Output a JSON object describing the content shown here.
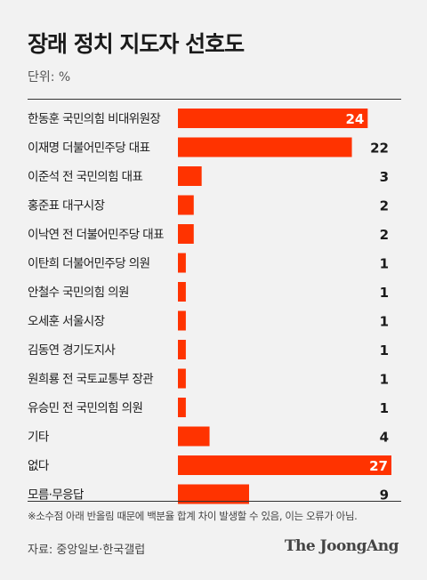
{
  "header": {
    "title": "장래 정치 지도자 선호도",
    "unit": "단위: %"
  },
  "footer": {
    "footnote": "※소수점 아래 반올림 때문에 백분율 합계 차이 발생할 수 있음, 이는 오류가 아님.",
    "source": "자료: 중앙일보·한국갤럽",
    "brand": "The JoongAng"
  },
  "colors": {
    "bar": "#ff3300",
    "label_inside": "#ffffff",
    "label_outside": "#1a1a1a"
  },
  "chart_data": {
    "type": "bar",
    "orientation": "horizontal",
    "title": "장래 정치 지도자 선호도",
    "unit": "%",
    "categories": [
      "한동훈 국민의힘 비대위원장",
      "이재명 더불어민주당 대표",
      "이준석 전 국민의힘 대표",
      "홍준표 대구시장",
      "이낙연 전 더불어민주당 대표",
      "이탄희 더불어민주당 의원",
      "안철수 국민의힘 의원",
      "오세훈 서울시장",
      "김동연 경기도지사",
      "원희룡 전 국토교통부 장관",
      "유승민 전 국민의힘 의원",
      "기타",
      "없다",
      "모름·무응답"
    ],
    "values": [
      24,
      22,
      3,
      2,
      2,
      1,
      1,
      1,
      1,
      1,
      1,
      4,
      27,
      9
    ],
    "data_labels": [
      "24",
      "22",
      "3",
      "2",
      "2",
      "1",
      "1",
      "1",
      "1",
      "1",
      "1",
      "4",
      "27",
      "9"
    ],
    "xlim": [
      0,
      27
    ],
    "grid": false,
    "legend": "none"
  }
}
